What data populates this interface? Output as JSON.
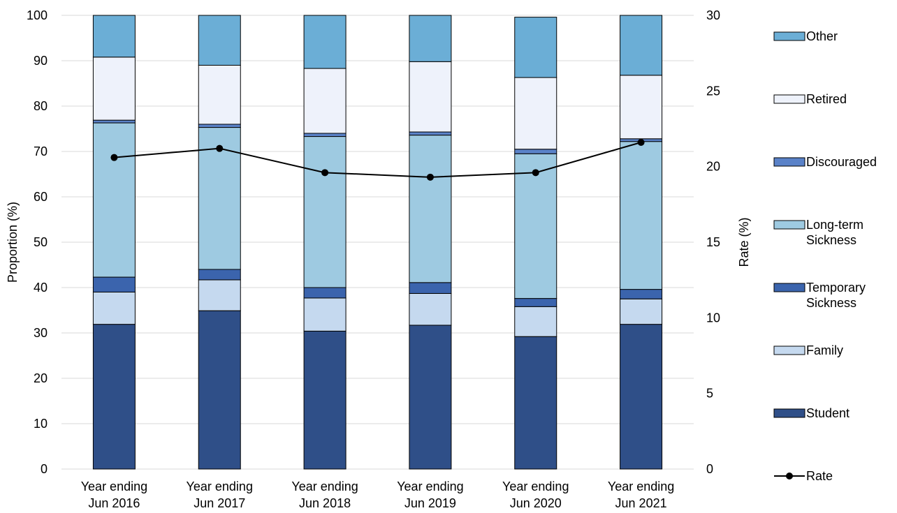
{
  "chart_data": {
    "type": "bar",
    "subtype": "stacked-bar-with-line",
    "categories": [
      [
        "Year ending",
        "Jun 2016"
      ],
      [
        "Year ending",
        "Jun 2017"
      ],
      [
        "Year ending",
        "Jun 2018"
      ],
      [
        "Year ending",
        "Jun 2019"
      ],
      [
        "Year ending",
        "Jun 2020"
      ],
      [
        "Year ending",
        "Jun 2021"
      ]
    ],
    "ylabel": "Proportion (%)",
    "y2label": "Rate (%)",
    "ylim": [
      0,
      100
    ],
    "y2lim": [
      0,
      30
    ],
    "yticks": [
      0,
      10,
      20,
      30,
      40,
      50,
      60,
      70,
      80,
      90,
      100
    ],
    "y2ticks": [
      0,
      5,
      10,
      15,
      20,
      25,
      30
    ],
    "grid": true,
    "legend_position": "right",
    "series": [
      {
        "name": "Student",
        "color": "#2f4f88",
        "values": [
          31.9,
          34.9,
          30.4,
          31.7,
          29.2,
          31.9
        ]
      },
      {
        "name": "Family",
        "color": "#c5d9ef",
        "values": [
          7.1,
          6.8,
          7.3,
          7.0,
          6.6,
          5.6
        ]
      },
      {
        "name": "Temporary Sickness",
        "color": "#3b64ad",
        "values": [
          3.3,
          2.3,
          2.3,
          2.4,
          1.8,
          2.1
        ]
      },
      {
        "name": "Long-term Sickness",
        "color": "#9ecae1",
        "values": [
          34.0,
          31.3,
          33.3,
          32.5,
          31.9,
          32.6
        ]
      },
      {
        "name": "Discouraged",
        "color": "#5a82c8",
        "values": [
          0.6,
          0.7,
          0.7,
          0.7,
          1.0,
          0.6
        ]
      },
      {
        "name": "Retired",
        "color": "#eef2fb",
        "values": [
          13.9,
          13.0,
          14.3,
          15.5,
          15.8,
          14.0
        ]
      },
      {
        "name": "Other",
        "color": "#6baed6",
        "values": [
          9.2,
          11.0,
          11.7,
          10.2,
          13.3,
          13.2
        ]
      }
    ],
    "line_series": {
      "name": "Rate",
      "color": "#000000",
      "axis": "right",
      "values": [
        20.6,
        21.2,
        19.6,
        19.3,
        19.6,
        21.6
      ]
    }
  }
}
